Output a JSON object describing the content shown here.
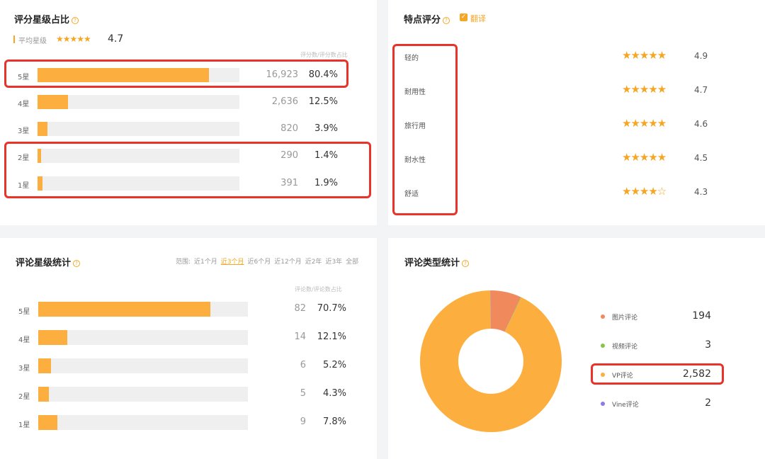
{
  "rating_share": {
    "title": "评分星级占比",
    "avg_label": "平均星级",
    "avg_stars": "★★★★★",
    "avg_value": "4.7",
    "hint": "评分数/评分数占比",
    "rows": [
      {
        "label": "5星",
        "count": "16,923",
        "pct": "80.4%",
        "fraction": 0.85
      },
      {
        "label": "4星",
        "count": "2,636",
        "pct": "12.5%",
        "fraction": 0.15
      },
      {
        "label": "3星",
        "count": "820",
        "pct": "3.9%",
        "fraction": 0.05
      },
      {
        "label": "2星",
        "count": "290",
        "pct": "1.4%",
        "fraction": 0.018
      },
      {
        "label": "1星",
        "count": "391",
        "pct": "1.9%",
        "fraction": 0.024
      }
    ]
  },
  "features": {
    "title": "特点评分",
    "translate_label": "翻译",
    "rows": [
      {
        "label": "轻的",
        "stars": "★★★★★",
        "value": "4.9"
      },
      {
        "label": "耐用性",
        "stars": "★★★★★",
        "value": "4.7"
      },
      {
        "label": "旅行用",
        "stars": "★★★★★",
        "value": "4.6"
      },
      {
        "label": "耐水性",
        "stars": "★★★★★",
        "value": "4.5"
      },
      {
        "label": "舒适",
        "stars": "★★★★☆",
        "value": "4.3"
      }
    ]
  },
  "review_stats": {
    "title": "评论星级统计",
    "hint": "评论数/评论数占比",
    "ranges": [
      "范围:",
      "近1个月",
      "近3个月",
      "近6个月",
      "近12个月",
      "近2年",
      "近3年",
      "全部"
    ],
    "rows": [
      {
        "label": "5星",
        "count": "82",
        "pct": "70.7%",
        "fraction": 0.82
      },
      {
        "label": "4星",
        "count": "14",
        "pct": "12.1%",
        "fraction": 0.14
      },
      {
        "label": "3星",
        "count": "6",
        "pct": "5.2%",
        "fraction": 0.06
      },
      {
        "label": "2星",
        "count": "5",
        "pct": "4.3%",
        "fraction": 0.05
      },
      {
        "label": "1星",
        "count": "9",
        "pct": "7.8%",
        "fraction": 0.09
      }
    ]
  },
  "review_types": {
    "title": "评论类型统计",
    "items": [
      {
        "label": "图片评论",
        "value": "194",
        "color": "#f08a5d"
      },
      {
        "label": "视频评论",
        "value": "3",
        "color": "#8bc34a"
      },
      {
        "label": "VP评论",
        "value": "2,582",
        "color": "#fcaf3e"
      },
      {
        "label": "Vine评论",
        "value": "2",
        "color": "#8c7ae6"
      }
    ]
  }
}
